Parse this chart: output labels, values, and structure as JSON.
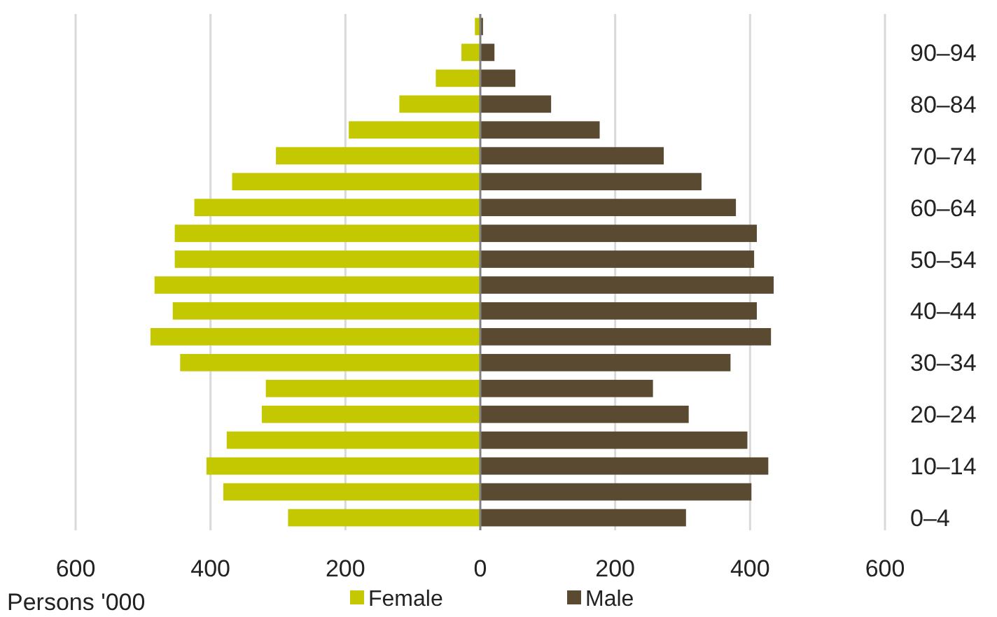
{
  "chart_data": {
    "type": "bar",
    "orientation": "horizontal",
    "xlabel": "Persons '000",
    "categories": [
      null,
      "90–94",
      null,
      "80–84",
      null,
      "70–74",
      null,
      "60–64",
      null,
      "50–54",
      null,
      "40–44",
      null,
      "30–34",
      null,
      "20–24",
      null,
      "10–14",
      null,
      "0–4"
    ],
    "series": [
      {
        "name": "Female",
        "color": "#c4c800",
        "values": [
          -8,
          -28,
          -66,
          -120,
          -195,
          -303,
          -368,
          -424,
          -453,
          -453,
          -483,
          -456,
          -489,
          -445,
          -318,
          -324,
          -376,
          -406,
          -381,
          -285
        ]
      },
      {
        "name": "Male",
        "color": "#5a4a32",
        "values": [
          4,
          21,
          52,
          105,
          177,
          272,
          328,
          379,
          410,
          406,
          435,
          410,
          431,
          371,
          256,
          309,
          396,
          427,
          402,
          305
        ]
      }
    ],
    "xlim": [
      -600,
      600
    ],
    "xticks": [
      {
        "value": -600,
        "label": "600"
      },
      {
        "value": -400,
        "label": "400"
      },
      {
        "value": -200,
        "label": "200"
      },
      0,
      200,
      400,
      600
    ],
    "grid": "x",
    "legend": "bottom",
    "stacked": true
  }
}
